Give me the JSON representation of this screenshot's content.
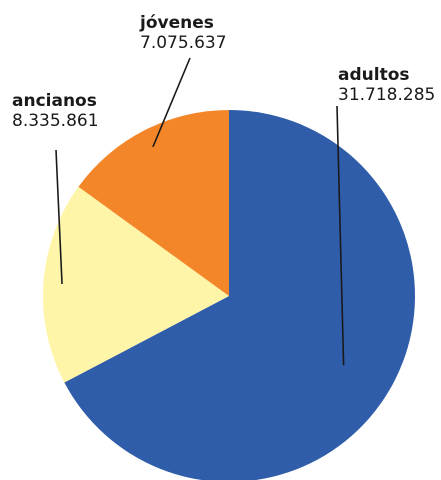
{
  "chart_data": {
    "type": "pie",
    "slices": [
      {
        "label": "adultos",
        "value_label": "31.718.285",
        "value": 31718285,
        "color": "#2F5DAA"
      },
      {
        "label": "ancianos",
        "value_label": "8.335.861",
        "value": 8335861,
        "color": "#FFF5A8"
      },
      {
        "label": "jóvenes",
        "value_label": "7.075.637",
        "value": 7075637,
        "color": "#F4862A"
      }
    ],
    "start": "12 o'clock",
    "direction": "clockwise",
    "legend": "none"
  }
}
